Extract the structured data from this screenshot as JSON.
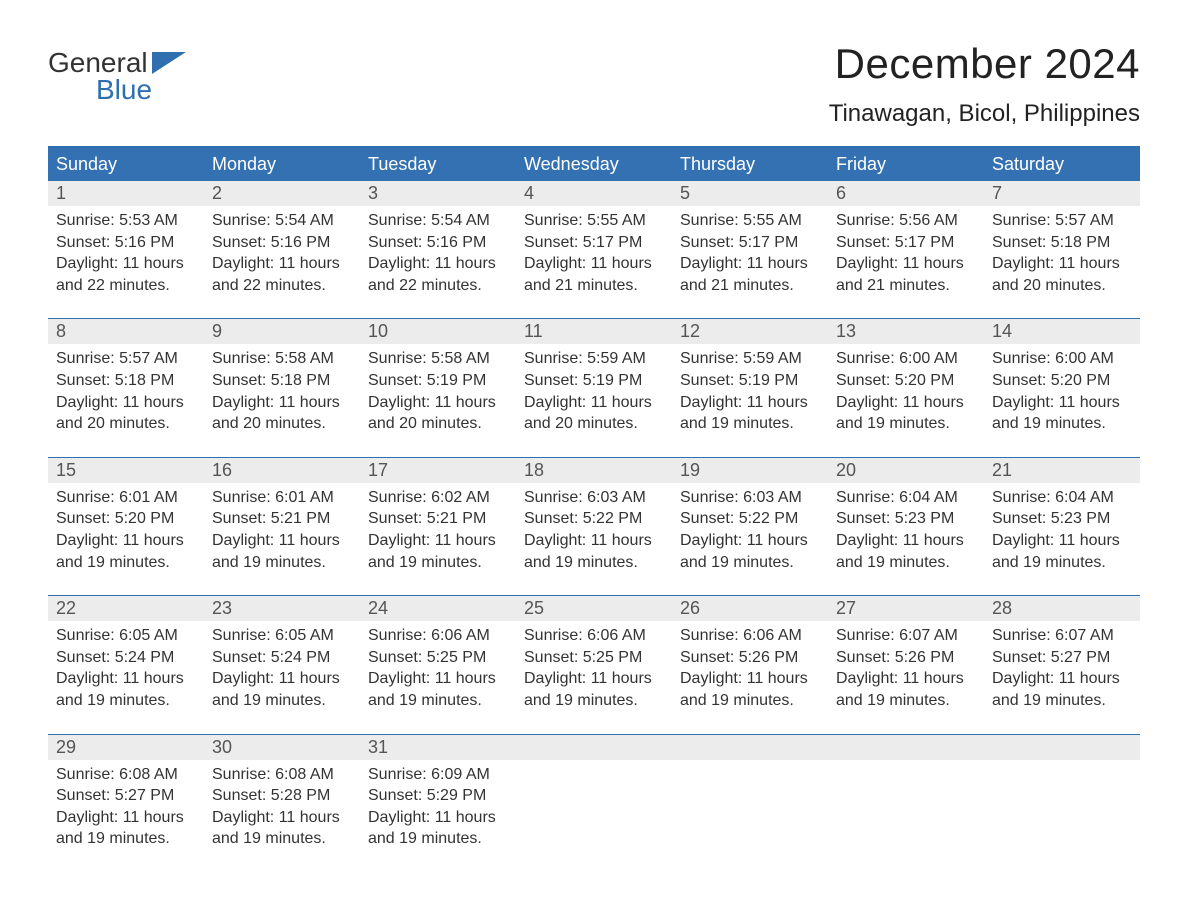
{
  "logo": {
    "text_top": "General",
    "text_bottom": "Blue",
    "icon_color": "#2f6fb0",
    "top_color": "#333333",
    "bottom_color": "#2f6fb0"
  },
  "title": "December 2024",
  "location": "Tinawagan, Bicol, Philippines",
  "colors": {
    "header_bg": "#3371b2",
    "header_text": "#ffffff",
    "date_row_bg": "#ececec",
    "week_border": "#2f6fb0",
    "body_text": "#333333",
    "date_text": "#555555",
    "background": "#ffffff"
  },
  "day_names": [
    "Sunday",
    "Monday",
    "Tuesday",
    "Wednesday",
    "Thursday",
    "Friday",
    "Saturday"
  ],
  "weeks": [
    [
      {
        "date": "1",
        "sunrise": "Sunrise: 5:53 AM",
        "sunset": "Sunset: 5:16 PM",
        "day1": "Daylight: 11 hours",
        "day2": "and 22 minutes."
      },
      {
        "date": "2",
        "sunrise": "Sunrise: 5:54 AM",
        "sunset": "Sunset: 5:16 PM",
        "day1": "Daylight: 11 hours",
        "day2": "and 22 minutes."
      },
      {
        "date": "3",
        "sunrise": "Sunrise: 5:54 AM",
        "sunset": "Sunset: 5:16 PM",
        "day1": "Daylight: 11 hours",
        "day2": "and 22 minutes."
      },
      {
        "date": "4",
        "sunrise": "Sunrise: 5:55 AM",
        "sunset": "Sunset: 5:17 PM",
        "day1": "Daylight: 11 hours",
        "day2": "and 21 minutes."
      },
      {
        "date": "5",
        "sunrise": "Sunrise: 5:55 AM",
        "sunset": "Sunset: 5:17 PM",
        "day1": "Daylight: 11 hours",
        "day2": "and 21 minutes."
      },
      {
        "date": "6",
        "sunrise": "Sunrise: 5:56 AM",
        "sunset": "Sunset: 5:17 PM",
        "day1": "Daylight: 11 hours",
        "day2": "and 21 minutes."
      },
      {
        "date": "7",
        "sunrise": "Sunrise: 5:57 AM",
        "sunset": "Sunset: 5:18 PM",
        "day1": "Daylight: 11 hours",
        "day2": "and 20 minutes."
      }
    ],
    [
      {
        "date": "8",
        "sunrise": "Sunrise: 5:57 AM",
        "sunset": "Sunset: 5:18 PM",
        "day1": "Daylight: 11 hours",
        "day2": "and 20 minutes."
      },
      {
        "date": "9",
        "sunrise": "Sunrise: 5:58 AM",
        "sunset": "Sunset: 5:18 PM",
        "day1": "Daylight: 11 hours",
        "day2": "and 20 minutes."
      },
      {
        "date": "10",
        "sunrise": "Sunrise: 5:58 AM",
        "sunset": "Sunset: 5:19 PM",
        "day1": "Daylight: 11 hours",
        "day2": "and 20 minutes."
      },
      {
        "date": "11",
        "sunrise": "Sunrise: 5:59 AM",
        "sunset": "Sunset: 5:19 PM",
        "day1": "Daylight: 11 hours",
        "day2": "and 20 minutes."
      },
      {
        "date": "12",
        "sunrise": "Sunrise: 5:59 AM",
        "sunset": "Sunset: 5:19 PM",
        "day1": "Daylight: 11 hours",
        "day2": "and 19 minutes."
      },
      {
        "date": "13",
        "sunrise": "Sunrise: 6:00 AM",
        "sunset": "Sunset: 5:20 PM",
        "day1": "Daylight: 11 hours",
        "day2": "and 19 minutes."
      },
      {
        "date": "14",
        "sunrise": "Sunrise: 6:00 AM",
        "sunset": "Sunset: 5:20 PM",
        "day1": "Daylight: 11 hours",
        "day2": "and 19 minutes."
      }
    ],
    [
      {
        "date": "15",
        "sunrise": "Sunrise: 6:01 AM",
        "sunset": "Sunset: 5:20 PM",
        "day1": "Daylight: 11 hours",
        "day2": "and 19 minutes."
      },
      {
        "date": "16",
        "sunrise": "Sunrise: 6:01 AM",
        "sunset": "Sunset: 5:21 PM",
        "day1": "Daylight: 11 hours",
        "day2": "and 19 minutes."
      },
      {
        "date": "17",
        "sunrise": "Sunrise: 6:02 AM",
        "sunset": "Sunset: 5:21 PM",
        "day1": "Daylight: 11 hours",
        "day2": "and 19 minutes."
      },
      {
        "date": "18",
        "sunrise": "Sunrise: 6:03 AM",
        "sunset": "Sunset: 5:22 PM",
        "day1": "Daylight: 11 hours",
        "day2": "and 19 minutes."
      },
      {
        "date": "19",
        "sunrise": "Sunrise: 6:03 AM",
        "sunset": "Sunset: 5:22 PM",
        "day1": "Daylight: 11 hours",
        "day2": "and 19 minutes."
      },
      {
        "date": "20",
        "sunrise": "Sunrise: 6:04 AM",
        "sunset": "Sunset: 5:23 PM",
        "day1": "Daylight: 11 hours",
        "day2": "and 19 minutes."
      },
      {
        "date": "21",
        "sunrise": "Sunrise: 6:04 AM",
        "sunset": "Sunset: 5:23 PM",
        "day1": "Daylight: 11 hours",
        "day2": "and 19 minutes."
      }
    ],
    [
      {
        "date": "22",
        "sunrise": "Sunrise: 6:05 AM",
        "sunset": "Sunset: 5:24 PM",
        "day1": "Daylight: 11 hours",
        "day2": "and 19 minutes."
      },
      {
        "date": "23",
        "sunrise": "Sunrise: 6:05 AM",
        "sunset": "Sunset: 5:24 PM",
        "day1": "Daylight: 11 hours",
        "day2": "and 19 minutes."
      },
      {
        "date": "24",
        "sunrise": "Sunrise: 6:06 AM",
        "sunset": "Sunset: 5:25 PM",
        "day1": "Daylight: 11 hours",
        "day2": "and 19 minutes."
      },
      {
        "date": "25",
        "sunrise": "Sunrise: 6:06 AM",
        "sunset": "Sunset: 5:25 PM",
        "day1": "Daylight: 11 hours",
        "day2": "and 19 minutes."
      },
      {
        "date": "26",
        "sunrise": "Sunrise: 6:06 AM",
        "sunset": "Sunset: 5:26 PM",
        "day1": "Daylight: 11 hours",
        "day2": "and 19 minutes."
      },
      {
        "date": "27",
        "sunrise": "Sunrise: 6:07 AM",
        "sunset": "Sunset: 5:26 PM",
        "day1": "Daylight: 11 hours",
        "day2": "and 19 minutes."
      },
      {
        "date": "28",
        "sunrise": "Sunrise: 6:07 AM",
        "sunset": "Sunset: 5:27 PM",
        "day1": "Daylight: 11 hours",
        "day2": "and 19 minutes."
      }
    ],
    [
      {
        "date": "29",
        "sunrise": "Sunrise: 6:08 AM",
        "sunset": "Sunset: 5:27 PM",
        "day1": "Daylight: 11 hours",
        "day2": "and 19 minutes."
      },
      {
        "date": "30",
        "sunrise": "Sunrise: 6:08 AM",
        "sunset": "Sunset: 5:28 PM",
        "day1": "Daylight: 11 hours",
        "day2": "and 19 minutes."
      },
      {
        "date": "31",
        "sunrise": "Sunrise: 6:09 AM",
        "sunset": "Sunset: 5:29 PM",
        "day1": "Daylight: 11 hours",
        "day2": "and 19 minutes."
      },
      null,
      null,
      null,
      null
    ]
  ]
}
